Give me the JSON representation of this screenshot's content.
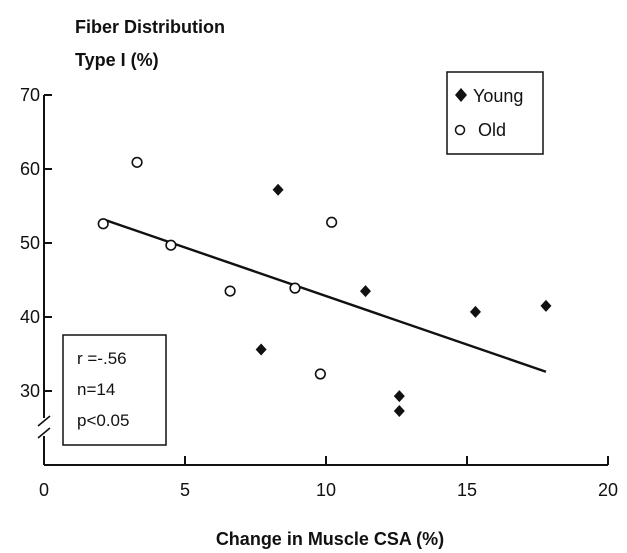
{
  "chart_data": {
    "type": "scatter",
    "title": "Fiber Distribution",
    "subtitle": "Type I (%)",
    "xlabel": "Change in Muscle CSA (%)",
    "ylabel": "Type I (%)",
    "xlim": [
      0,
      20
    ],
    "ylim": [
      20,
      70
    ],
    "x_ticks": [
      0,
      5,
      10,
      15,
      20
    ],
    "y_ticks": [
      30,
      40,
      50,
      60,
      70
    ],
    "y_axis_break": true,
    "grid": false,
    "legend_position": "top-right",
    "series": [
      {
        "name": "Young",
        "marker": "filled-diamond",
        "points": [
          {
            "x": 7.7,
            "y": 35.6
          },
          {
            "x": 8.3,
            "y": 57.2
          },
          {
            "x": 11.4,
            "y": 43.5
          },
          {
            "x": 12.6,
            "y": 29.3
          },
          {
            "x": 12.6,
            "y": 27.3
          },
          {
            "x": 15.3,
            "y": 40.7
          },
          {
            "x": 17.8,
            "y": 41.5
          }
        ]
      },
      {
        "name": "Old",
        "marker": "open-circle",
        "points": [
          {
            "x": 2.1,
            "y": 52.6
          },
          {
            "x": 3.3,
            "y": 60.9
          },
          {
            "x": 4.5,
            "y": 49.7
          },
          {
            "x": 6.6,
            "y": 43.5
          },
          {
            "x": 8.9,
            "y": 43.9
          },
          {
            "x": 9.8,
            "y": 32.3
          },
          {
            "x": 10.2,
            "y": 52.8
          }
        ]
      }
    ],
    "regression_line": {
      "x1": 2.1,
      "y1": 53.2,
      "x2": 17.8,
      "y2": 32.6
    },
    "stats": {
      "r": "r =-.56",
      "n": "n=14",
      "p": "p<0.05"
    }
  }
}
